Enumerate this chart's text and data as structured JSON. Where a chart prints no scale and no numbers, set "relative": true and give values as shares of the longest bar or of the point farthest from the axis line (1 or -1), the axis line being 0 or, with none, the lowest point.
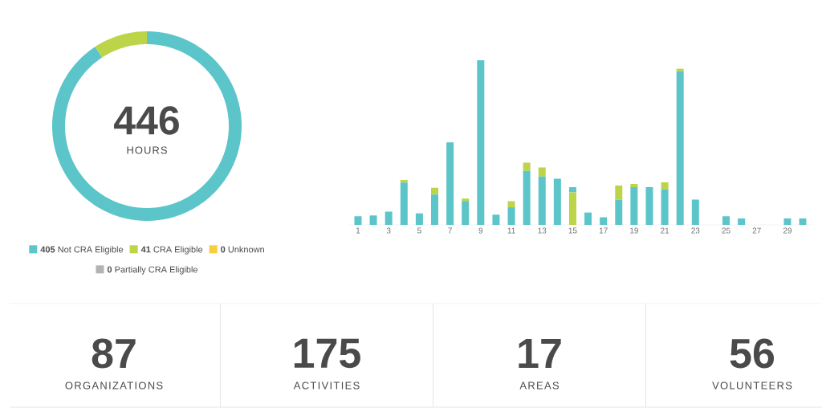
{
  "chart_data": [
    {
      "type": "donut",
      "title": "446",
      "subtitle": "HOURS",
      "categories": [
        "Not CRA Eligible",
        "CRA Eligible",
        "Unknown",
        "Partially CRA Eligible"
      ],
      "values": [
        405,
        41,
        0,
        0
      ],
      "value_labels": [
        "405",
        "41",
        "0",
        "0"
      ],
      "colors": [
        "#5bc5ca",
        "#bcd448",
        "#f9cc3c",
        "#b3b3b3"
      ],
      "legend": "bottom"
    },
    {
      "type": "bar",
      "stacked": true,
      "relative": true,
      "categories": [
        "1",
        null,
        "3",
        null,
        "5",
        null,
        "7",
        null,
        "9",
        null,
        "11",
        null,
        "13",
        null,
        "15",
        null,
        "17",
        null,
        "19",
        null,
        "21",
        null,
        "23",
        null,
        "25",
        null,
        "27",
        null,
        "29",
        null
      ],
      "series": [
        {
          "color": "#5bc5ca",
          "values": [
            0.052,
            0.057,
            0.08,
            0.257,
            0.07,
            0.184,
            0.501,
            0.145,
            1.0,
            0.062,
            0.107,
            0.328,
            0.294,
            0.281,
            0,
            0.075,
            0.046,
            0.153,
            0.229,
            0.229,
            0.216,
            0.933,
            0.154,
            0,
            0.052,
            0.039,
            0,
            0,
            0.039,
            0.039
          ]
        },
        {
          "color": "#bcd448",
          "values": [
            0,
            0,
            0,
            0.016,
            0,
            0.042,
            0,
            0.015,
            0,
            0,
            0.037,
            0.05,
            0.055,
            0,
            0.198,
            0,
            0,
            0.086,
            0.02,
            0,
            0.042,
            0.016,
            0,
            0,
            0,
            0,
            0,
            0,
            0,
            0
          ]
        },
        {
          "color": "#5bc5ca",
          "values": [
            0,
            0,
            0,
            0,
            0,
            0,
            0,
            0,
            0,
            0,
            0,
            0,
            0,
            0,
            0.031,
            0,
            0,
            0,
            0,
            0,
            0,
            0,
            0,
            0,
            0,
            0,
            0,
            0,
            0,
            0
          ]
        }
      ]
    },
    {
      "type": "other",
      "categories": [
        "ORGANIZATIONS",
        "ACTIVITIES",
        "AREAS",
        "VOLUNTEERS"
      ],
      "values": [
        87,
        175,
        17,
        56
      ],
      "data_labels": true
    }
  ]
}
